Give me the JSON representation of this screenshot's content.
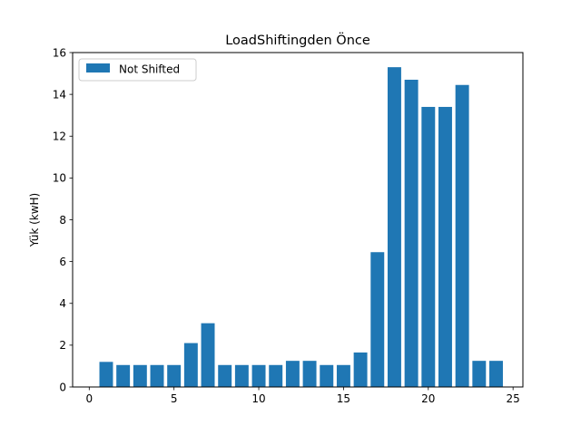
{
  "chart_data": {
    "type": "bar",
    "title": "LoadShiftingden Önce",
    "xlabel": "",
    "ylabel": "Yük (kwH)",
    "x": [
      1,
      2,
      3,
      4,
      5,
      6,
      7,
      8,
      9,
      10,
      11,
      12,
      13,
      14,
      15,
      16,
      17,
      18,
      19,
      20,
      21,
      22,
      23,
      24
    ],
    "series": [
      {
        "name": "Not Shifted",
        "color": "#1f77b4",
        "values": [
          1.2,
          1.05,
          1.05,
          1.05,
          1.05,
          2.1,
          3.05,
          1.05,
          1.05,
          1.05,
          1.05,
          1.25,
          1.25,
          1.05,
          1.05,
          1.65,
          6.45,
          15.3,
          14.7,
          13.4,
          13.4,
          14.45,
          1.25,
          1.25
        ]
      }
    ],
    "xlim": [
      -0.98,
      25.58
    ],
    "ylim": [
      0,
      16
    ],
    "xticks": [
      0,
      5,
      10,
      15,
      20,
      25
    ],
    "yticks": [
      0,
      2,
      4,
      6,
      8,
      10,
      12,
      14,
      16
    ],
    "grid": false,
    "legend_position": "upper-left"
  }
}
